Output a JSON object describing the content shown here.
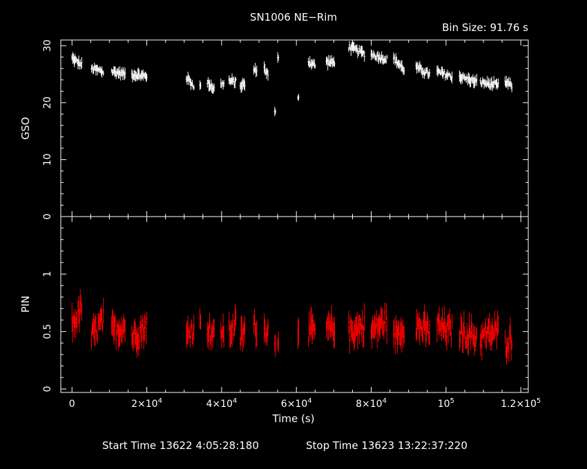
{
  "title": "SN1006 NE−Rim",
  "bin_size": "Bin Size: 91.76 s",
  "start_time": "Start Time 13622  4:05:28:180",
  "stop_time": "Stop Time 13623 13:22:37:220",
  "colors": {
    "background": "#000000",
    "axes": "#ffffff",
    "gso": "#ffffff",
    "pin": "#ff0000"
  },
  "chart_data": [
    {
      "type": "scatter",
      "panel": "top",
      "ylabel": "GSO",
      "xlim": [
        -3000,
        122000
      ],
      "ylim": [
        0,
        31
      ],
      "yticks": [
        0,
        10,
        20,
        30
      ],
      "ytick_labels": [
        "0",
        "10",
        "20",
        "30"
      ],
      "series": [
        {
          "color": "#ffffff",
          "segments": [
            {
              "x": [
                0,
                2600
              ],
              "y": [
                27.8,
                26.6
              ]
            },
            {
              "x": [
                5200,
                8400
              ],
              "y": [
                26.0,
                25.4
              ]
            },
            {
              "x": [
                10600,
                14200
              ],
              "y": [
                25.5,
                25.0
              ]
            },
            {
              "x": [
                16000,
                20000
              ],
              "y": [
                25.0,
                24.6
              ]
            },
            {
              "x": [
                30600,
                32600
              ],
              "y": [
                24.4,
                23.0
              ]
            },
            {
              "x": [
                34200,
                34400
              ],
              "y": [
                22.8,
                22.8
              ]
            },
            {
              "x": [
                36200,
                38000
              ],
              "y": [
                23.6,
                22.4
              ]
            },
            {
              "x": [
                39800,
                40600
              ],
              "y": [
                23.2,
                23.4
              ]
            },
            {
              "x": [
                42000,
                43800
              ],
              "y": [
                23.8,
                23.6
              ]
            },
            {
              "x": [
                45000,
                46200
              ],
              "y": [
                23.0,
                23.2
              ]
            },
            {
              "x": [
                48600,
                49400
              ],
              "y": [
                25.6,
                25.8
              ]
            },
            {
              "x": [
                51400,
                52400
              ],
              "y": [
                26.0,
                25.0
              ]
            },
            {
              "x": [
                54200,
                54400
              ],
              "y": [
                18.2,
                18.2
              ]
            },
            {
              "x": [
                55000,
                55200
              ],
              "y": [
                27.6,
                27.6
              ]
            },
            {
              "x": [
                60400,
                60600
              ],
              "y": [
                21.2,
                21.2
              ]
            },
            {
              "x": [
                63200,
                65000
              ],
              "y": [
                27.2,
                26.6
              ]
            },
            {
              "x": [
                68000,
                70200
              ],
              "y": [
                27.2,
                27.0
              ]
            },
            {
              "x": [
                74000,
                78200
              ],
              "y": [
                29.8,
                28.6
              ]
            },
            {
              "x": [
                80000,
                84200
              ],
              "y": [
                28.5,
                27.6
              ]
            },
            {
              "x": [
                86000,
                88800
              ],
              "y": [
                27.8,
                25.8
              ]
            },
            {
              "x": [
                92000,
                95600
              ],
              "y": [
                26.2,
                25.0
              ]
            },
            {
              "x": [
                97600,
                101600
              ],
              "y": [
                25.4,
                24.6
              ]
            },
            {
              "x": [
                103600,
                108200
              ],
              "y": [
                24.6,
                23.6
              ]
            },
            {
              "x": [
                109200,
                114000
              ],
              "y": [
                23.6,
                23.0
              ]
            },
            {
              "x": [
                115800,
                117600
              ],
              "y": [
                23.6,
                23.0
              ]
            }
          ]
        }
      ]
    },
    {
      "type": "scatter",
      "panel": "bottom",
      "ylabel": "PIN",
      "xlabel": "Time (s)",
      "xlim": [
        -3000,
        122000
      ],
      "ylim": [
        -0.03,
        1.5
      ],
      "yticks": [
        0,
        0.5,
        1
      ],
      "ytick_labels": [
        "0",
        "0.5",
        "1"
      ],
      "xticks": [
        0,
        20000,
        40000,
        60000,
        80000,
        100000,
        120000
      ],
      "xtick_labels": [
        {
          "base": "0",
          "exp": ""
        },
        {
          "base": "2×10",
          "exp": "4"
        },
        {
          "base": "4×10",
          "exp": "4"
        },
        {
          "base": "6×10",
          "exp": "4"
        },
        {
          "base": "8×10",
          "exp": "4"
        },
        {
          "base": "10",
          "exp": "5"
        },
        {
          "base": "1.2×10",
          "exp": "5"
        }
      ],
      "series": [
        {
          "color": "#ff0000",
          "segments": [
            {
              "x": [
                0,
                2600
              ],
              "y": [
                0.55,
                0.7
              ]
            },
            {
              "x": [
                5200,
                8400
              ],
              "y": [
                0.45,
                0.6
              ]
            },
            {
              "x": [
                10600,
                14200
              ],
              "y": [
                0.5,
                0.55
              ]
            },
            {
              "x": [
                16000,
                20000
              ],
              "y": [
                0.45,
                0.55
              ]
            },
            {
              "x": [
                30600,
                32600
              ],
              "y": [
                0.45,
                0.55
              ]
            },
            {
              "x": [
                34200,
                34400
              ],
              "y": [
                0.55,
                0.55
              ]
            },
            {
              "x": [
                36200,
                38000
              ],
              "y": [
                0.55,
                0.45
              ]
            },
            {
              "x": [
                39800,
                40600
              ],
              "y": [
                0.5,
                0.5
              ]
            },
            {
              "x": [
                42000,
                43800
              ],
              "y": [
                0.5,
                0.55
              ]
            },
            {
              "x": [
                45000,
                46200
              ],
              "y": [
                0.45,
                0.5
              ]
            },
            {
              "x": [
                48600,
                49400
              ],
              "y": [
                0.55,
                0.55
              ]
            },
            {
              "x": [
                51400,
                52400
              ],
              "y": [
                0.5,
                0.55
              ]
            },
            {
              "x": [
                54200,
                54400
              ],
              "y": [
                0.35,
                0.35
              ]
            },
            {
              "x": [
                55000,
                55200
              ],
              "y": [
                0.45,
                0.45
              ]
            },
            {
              "x": [
                60400,
                60600
              ],
              "y": [
                0.55,
                0.55
              ]
            },
            {
              "x": [
                63200,
                65000
              ],
              "y": [
                0.5,
                0.5
              ]
            },
            {
              "x": [
                68000,
                70200
              ],
              "y": [
                0.5,
                0.55
              ]
            },
            {
              "x": [
                74000,
                78200
              ],
              "y": [
                0.5,
                0.55
              ]
            },
            {
              "x": [
                80000,
                84200
              ],
              "y": [
                0.5,
                0.6
              ]
            },
            {
              "x": [
                86000,
                88800
              ],
              "y": [
                0.45,
                0.55
              ]
            },
            {
              "x": [
                92000,
                95600
              ],
              "y": [
                0.55,
                0.5
              ]
            },
            {
              "x": [
                97600,
                101600
              ],
              "y": [
                0.55,
                0.5
              ]
            },
            {
              "x": [
                103600,
                108200
              ],
              "y": [
                0.5,
                0.45
              ]
            },
            {
              "x": [
                109200,
                114000
              ],
              "y": [
                0.45,
                0.5
              ]
            },
            {
              "x": [
                115800,
                117600
              ],
              "y": [
                0.4,
                0.45
              ]
            }
          ]
        }
      ]
    }
  ]
}
